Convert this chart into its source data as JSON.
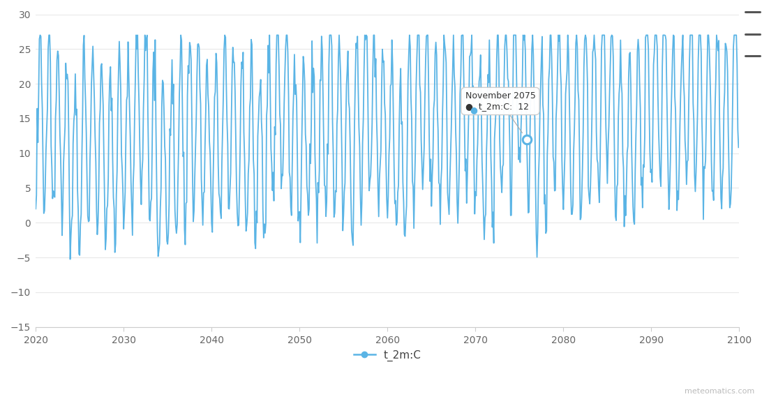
{
  "x_start": 2020,
  "x_end": 2100,
  "y_min": -15,
  "y_max": 30,
  "yticks": [
    -15,
    -10,
    -5,
    0,
    5,
    10,
    15,
    20,
    25,
    30
  ],
  "xticks": [
    2020,
    2030,
    2040,
    2050,
    2060,
    2070,
    2080,
    2090,
    2100
  ],
  "line_color": "#5ab4e5",
  "line_width": 1.3,
  "background_color": "#ffffff",
  "grid_color": "#e8e8e8",
  "legend_label": "t_2m:C",
  "legend_marker_color": "#5ab4e5",
  "tooltip_x": 2075.83,
  "tooltip_y": 12,
  "tooltip_title": "November 2075",
  "tooltip_series": "t_2m:C:",
  "tooltip_value": "12",
  "watermark": "meteomatics.com"
}
